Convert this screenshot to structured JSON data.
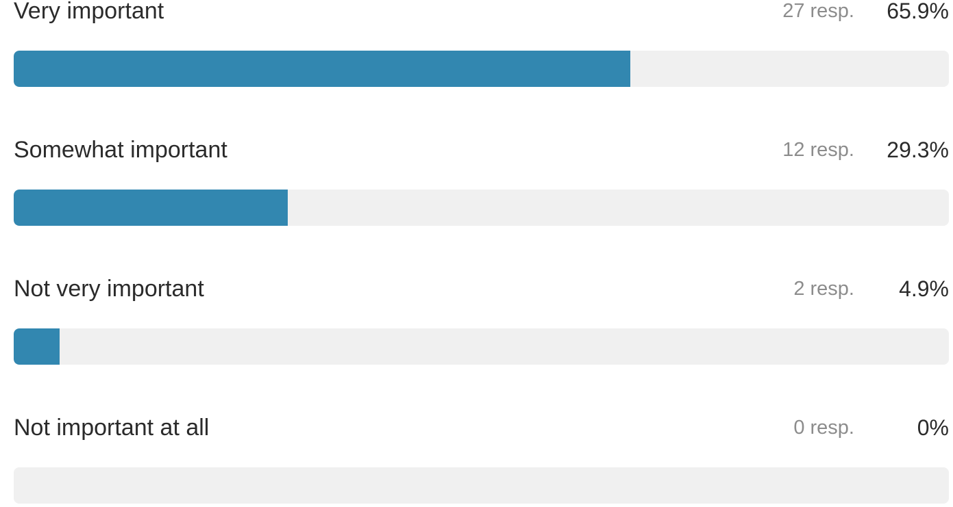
{
  "chart_data": {
    "type": "bar",
    "orientation": "horizontal",
    "categories": [
      "Very important",
      "Somewhat important",
      "Not very important",
      "Not important at all"
    ],
    "responses": [
      27,
      12,
      2,
      0
    ],
    "percentages": [
      65.9,
      29.3,
      4.9,
      0
    ],
    "response_labels": [
      "27 resp.",
      "12 resp.",
      "2 resp.",
      "0 resp."
    ],
    "percentage_labels": [
      "65.9%",
      "29.3%",
      "4.9%",
      "0%"
    ],
    "bar_color": "#3287b0",
    "track_color": "#f0f0f0",
    "xlim": [
      0,
      100
    ]
  }
}
